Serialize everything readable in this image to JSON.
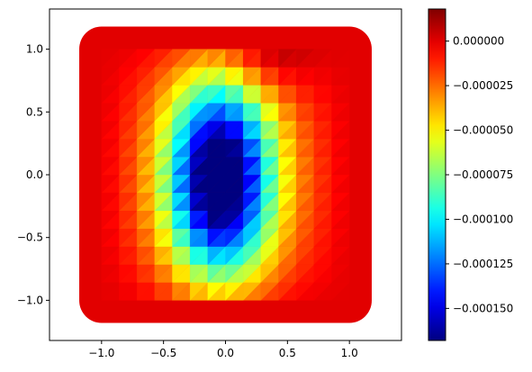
{
  "chart_data": {
    "type": "heatmap",
    "title": "",
    "xlabel": "",
    "ylabel": "",
    "xlim": [
      -1.42,
      1.42
    ],
    "ylim": [
      -1.32,
      1.32
    ],
    "x_ticks": [
      "−1.0",
      "−0.5",
      "0.0",
      "0.5",
      "1.0"
    ],
    "x_tick_values": [
      -1.0,
      -0.5,
      0.0,
      0.5,
      1.0
    ],
    "y_ticks": [
      "−1.0",
      "−0.5",
      "0.0",
      "0.5",
      "1.0"
    ],
    "y_tick_values": [
      -1.0,
      -0.5,
      0.0,
      0.5,
      1.0
    ],
    "colormap": "jet",
    "grid": false,
    "color_range": [
      -0.000168,
      1.8e-05
    ],
    "colorbar_ticks": [
      "0.000000",
      "−0.000025",
      "−0.000050",
      "−0.000075",
      "−0.000100",
      "−0.000125",
      "−0.000150"
    ],
    "colorbar_tick_values": [
      0.0,
      -2.5e-05,
      -5e-05,
      -7.5e-05,
      -0.0001,
      -0.000125,
      -0.00015
    ],
    "domain": {
      "x_range": [
        -1.0,
        1.0
      ],
      "y_range": [
        -1.0,
        1.0
      ],
      "rounded_padding": 0.18
    },
    "grid_points_per_axis": 15,
    "boundary_value": 0.0,
    "field_peak_min": -0.000168,
    "field_peak_location": [
      -0.05,
      -0.05
    ],
    "field_peak_max": 1.8e-05,
    "field_max_location": [
      0.3,
      0.95
    ],
    "values_note_unit": ""
  }
}
